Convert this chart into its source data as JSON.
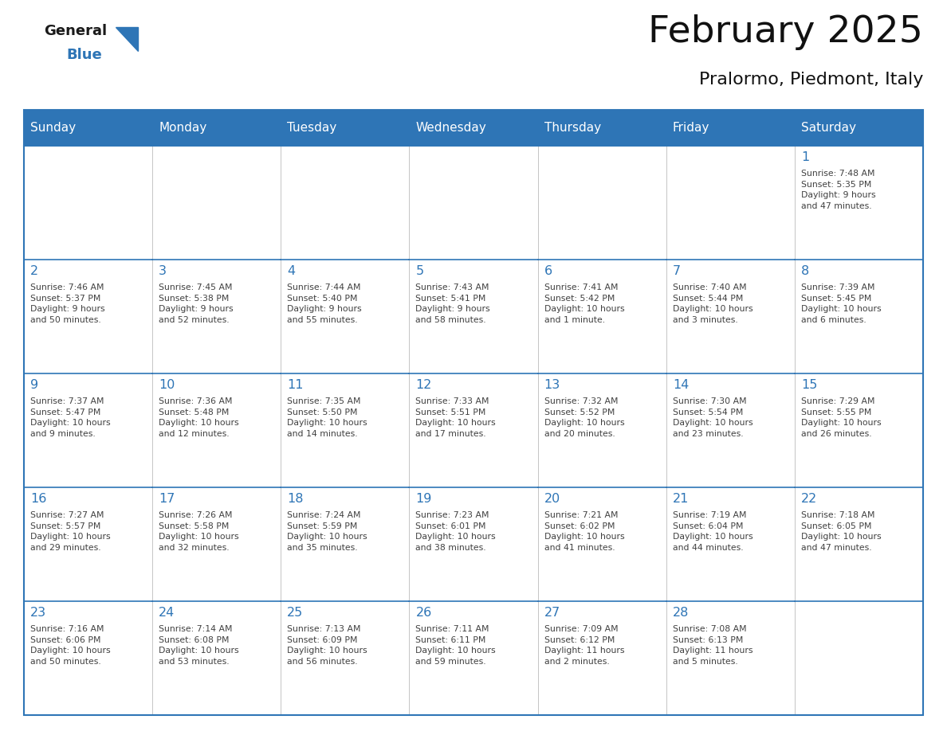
{
  "title": "February 2025",
  "subtitle": "Pralormo, Piedmont, Italy",
  "header_color": "#2E75B6",
  "header_text_color": "#FFFFFF",
  "days_of_week": [
    "Sunday",
    "Monday",
    "Tuesday",
    "Wednesday",
    "Thursday",
    "Friday",
    "Saturday"
  ],
  "border_color": "#2E75B6",
  "day_number_color": "#2E75B6",
  "text_color": "#404040",
  "weeks": [
    [
      {
        "day": null,
        "info": null
      },
      {
        "day": null,
        "info": null
      },
      {
        "day": null,
        "info": null
      },
      {
        "day": null,
        "info": null
      },
      {
        "day": null,
        "info": null
      },
      {
        "day": null,
        "info": null
      },
      {
        "day": 1,
        "info": "Sunrise: 7:48 AM\nSunset: 5:35 PM\nDaylight: 9 hours\nand 47 minutes."
      }
    ],
    [
      {
        "day": 2,
        "info": "Sunrise: 7:46 AM\nSunset: 5:37 PM\nDaylight: 9 hours\nand 50 minutes."
      },
      {
        "day": 3,
        "info": "Sunrise: 7:45 AM\nSunset: 5:38 PM\nDaylight: 9 hours\nand 52 minutes."
      },
      {
        "day": 4,
        "info": "Sunrise: 7:44 AM\nSunset: 5:40 PM\nDaylight: 9 hours\nand 55 minutes."
      },
      {
        "day": 5,
        "info": "Sunrise: 7:43 AM\nSunset: 5:41 PM\nDaylight: 9 hours\nand 58 minutes."
      },
      {
        "day": 6,
        "info": "Sunrise: 7:41 AM\nSunset: 5:42 PM\nDaylight: 10 hours\nand 1 minute."
      },
      {
        "day": 7,
        "info": "Sunrise: 7:40 AM\nSunset: 5:44 PM\nDaylight: 10 hours\nand 3 minutes."
      },
      {
        "day": 8,
        "info": "Sunrise: 7:39 AM\nSunset: 5:45 PM\nDaylight: 10 hours\nand 6 minutes."
      }
    ],
    [
      {
        "day": 9,
        "info": "Sunrise: 7:37 AM\nSunset: 5:47 PM\nDaylight: 10 hours\nand 9 minutes."
      },
      {
        "day": 10,
        "info": "Sunrise: 7:36 AM\nSunset: 5:48 PM\nDaylight: 10 hours\nand 12 minutes."
      },
      {
        "day": 11,
        "info": "Sunrise: 7:35 AM\nSunset: 5:50 PM\nDaylight: 10 hours\nand 14 minutes."
      },
      {
        "day": 12,
        "info": "Sunrise: 7:33 AM\nSunset: 5:51 PM\nDaylight: 10 hours\nand 17 minutes."
      },
      {
        "day": 13,
        "info": "Sunrise: 7:32 AM\nSunset: 5:52 PM\nDaylight: 10 hours\nand 20 minutes."
      },
      {
        "day": 14,
        "info": "Sunrise: 7:30 AM\nSunset: 5:54 PM\nDaylight: 10 hours\nand 23 minutes."
      },
      {
        "day": 15,
        "info": "Sunrise: 7:29 AM\nSunset: 5:55 PM\nDaylight: 10 hours\nand 26 minutes."
      }
    ],
    [
      {
        "day": 16,
        "info": "Sunrise: 7:27 AM\nSunset: 5:57 PM\nDaylight: 10 hours\nand 29 minutes."
      },
      {
        "day": 17,
        "info": "Sunrise: 7:26 AM\nSunset: 5:58 PM\nDaylight: 10 hours\nand 32 minutes."
      },
      {
        "day": 18,
        "info": "Sunrise: 7:24 AM\nSunset: 5:59 PM\nDaylight: 10 hours\nand 35 minutes."
      },
      {
        "day": 19,
        "info": "Sunrise: 7:23 AM\nSunset: 6:01 PM\nDaylight: 10 hours\nand 38 minutes."
      },
      {
        "day": 20,
        "info": "Sunrise: 7:21 AM\nSunset: 6:02 PM\nDaylight: 10 hours\nand 41 minutes."
      },
      {
        "day": 21,
        "info": "Sunrise: 7:19 AM\nSunset: 6:04 PM\nDaylight: 10 hours\nand 44 minutes."
      },
      {
        "day": 22,
        "info": "Sunrise: 7:18 AM\nSunset: 6:05 PM\nDaylight: 10 hours\nand 47 minutes."
      }
    ],
    [
      {
        "day": 23,
        "info": "Sunrise: 7:16 AM\nSunset: 6:06 PM\nDaylight: 10 hours\nand 50 minutes."
      },
      {
        "day": 24,
        "info": "Sunrise: 7:14 AM\nSunset: 6:08 PM\nDaylight: 10 hours\nand 53 minutes."
      },
      {
        "day": 25,
        "info": "Sunrise: 7:13 AM\nSunset: 6:09 PM\nDaylight: 10 hours\nand 56 minutes."
      },
      {
        "day": 26,
        "info": "Sunrise: 7:11 AM\nSunset: 6:11 PM\nDaylight: 10 hours\nand 59 minutes."
      },
      {
        "day": 27,
        "info": "Sunrise: 7:09 AM\nSunset: 6:12 PM\nDaylight: 11 hours\nand 2 minutes."
      },
      {
        "day": 28,
        "info": "Sunrise: 7:08 AM\nSunset: 6:13 PM\nDaylight: 11 hours\nand 5 minutes."
      },
      {
        "day": null,
        "info": null
      }
    ]
  ]
}
